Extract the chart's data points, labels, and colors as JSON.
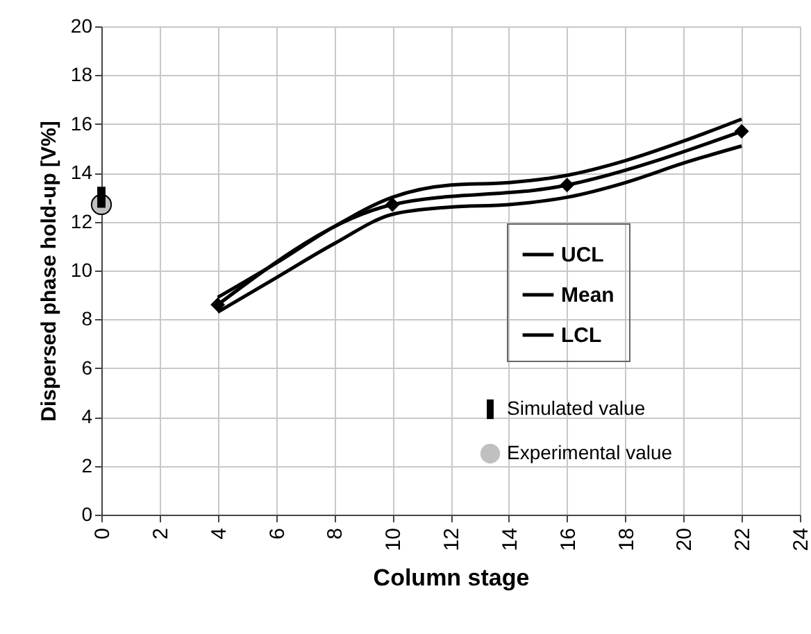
{
  "chart_data": {
    "type": "line",
    "xlabel": "Column stage",
    "ylabel": "Dispersed phase hold-up [V%]",
    "xlim": [
      0,
      24
    ],
    "xticks": [
      0,
      2,
      4,
      6,
      8,
      10,
      12,
      14,
      16,
      18,
      20,
      22,
      24
    ],
    "ylim": [
      0,
      20
    ],
    "yticks": [
      0,
      2,
      4,
      6,
      8,
      10,
      12,
      14,
      16,
      18,
      20
    ],
    "grid": true,
    "legend": "right",
    "series": [
      {
        "name": "UCL",
        "color": "#000000",
        "marker": "none",
        "x": [
          4,
          6,
          8,
          10,
          12,
          14,
          16,
          18,
          20,
          22
        ],
        "values": [
          8.9,
          10.3,
          11.8,
          13.0,
          13.5,
          13.6,
          13.9,
          14.5,
          15.3,
          16.2
        ]
      },
      {
        "name": "Mean",
        "color": "#000000",
        "marker": "diamond",
        "x": [
          4,
          10,
          16,
          22
        ],
        "values": [
          8.6,
          12.7,
          13.5,
          15.7
        ]
      },
      {
        "name": "LCL",
        "color": "#000000",
        "marker": "none",
        "x": [
          4,
          6,
          8,
          10,
          12,
          14,
          16,
          18,
          20,
          22
        ],
        "values": [
          8.3,
          9.7,
          11.1,
          12.3,
          12.6,
          12.7,
          13.0,
          13.6,
          14.4,
          15.1
        ]
      },
      {
        "name": "Simulated  value",
        "type": "scatter",
        "color": "#000000",
        "marker": "square",
        "x": [
          0
        ],
        "values": [
          13.0
        ]
      },
      {
        "name": "Experimental value",
        "type": "scatter",
        "color": "#c0c0c0",
        "marker": "circle",
        "x": [
          0
        ],
        "values": [
          12.7
        ]
      }
    ]
  }
}
